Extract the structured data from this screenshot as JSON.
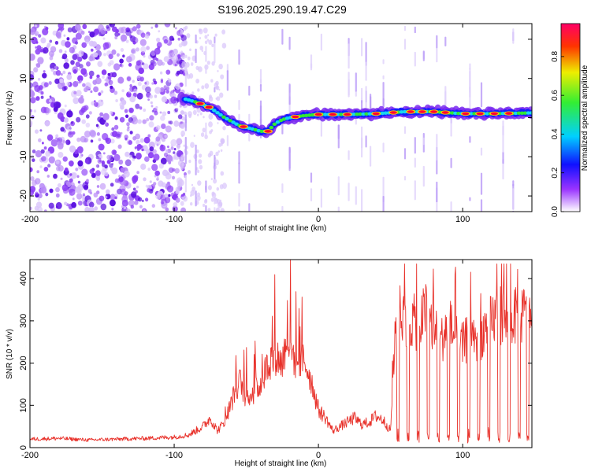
{
  "title": "S196.2025.290.19.47.C29",
  "colors": {
    "series": "#e8312a",
    "purple": "#7a2cf0",
    "blue": "#1020ff",
    "cyan": "#19d7ee",
    "green": "#33e833",
    "red": "#ff0030"
  },
  "chart_data": [
    {
      "type": "heatmap",
      "name": "spectrogram",
      "title": "S196.2025.290.19.47.C29",
      "xlabel": "Height of straight line (km)",
      "ylabel": "Frequency (Hz)",
      "xlim": [
        -200,
        148
      ],
      "ylim": [
        -24,
        24
      ],
      "x_ticks": [
        -200,
        -100,
        0,
        100
      ],
      "y_ticks": [
        -20,
        -10,
        0,
        10,
        20
      ],
      "colorbar": {
        "label": "Normalized spectral amplitude",
        "range": [
          0,
          0.97
        ],
        "ticks": [
          0.0,
          0.2,
          0.4,
          0.6,
          0.8
        ],
        "tick_labels": [
          "0.0",
          "0.2",
          "0.4",
          "0.6",
          "0.8"
        ]
      },
      "ridge": {
        "description": "frequency of strongest component vs height",
        "x": [
          -95,
          -85,
          -75,
          -65,
          -55,
          -45,
          -40,
          -35,
          -30,
          -25,
          -20,
          -10,
          0,
          20,
          40,
          60,
          80,
          100,
          120,
          148
        ],
        "y": [
          5,
          4,
          2.5,
          0,
          -2,
          -3,
          -3.5,
          -3.5,
          -1.5,
          -0.5,
          0,
          0.5,
          0.8,
          0.8,
          1,
          1.5,
          1.5,
          1,
          1,
          1.2
        ]
      },
      "noise_region": {
        "x_from": -200,
        "x_to": -92,
        "description": "scattered low-amplitude noise across all frequencies"
      }
    },
    {
      "type": "line",
      "name": "snr",
      "xlabel": "Height of straight line (km)",
      "ylabel": "SNR (10 * v/v)",
      "xlim": [
        -200,
        148
      ],
      "ylim": [
        0,
        445
      ],
      "x_ticks": [
        -200,
        -100,
        0,
        100
      ],
      "y_ticks": [
        0,
        100,
        200,
        300,
        400
      ],
      "series": [
        {
          "name": "SNR",
          "x": [
            -200,
            -180,
            -160,
            -140,
            -120,
            -100,
            -90,
            -80,
            -75,
            -70,
            -65,
            -60,
            -55,
            -50,
            -45,
            -40,
            -35,
            -30,
            -25,
            -22,
            -20,
            -15,
            -10,
            -5,
            0,
            5,
            10,
            15,
            20,
            25,
            30,
            35,
            40,
            45,
            50,
            52,
            55,
            60,
            65,
            70,
            75,
            80,
            85,
            90,
            95,
            100,
            105,
            110,
            115,
            120,
            125,
            130,
            135,
            140,
            145,
            148
          ],
          "y": [
            20,
            22,
            18,
            20,
            22,
            25,
            30,
            50,
            70,
            40,
            60,
            110,
            160,
            120,
            130,
            150,
            200,
            220,
            200,
            260,
            240,
            200,
            210,
            160,
            90,
            70,
            40,
            50,
            60,
            70,
            55,
            60,
            75,
            65,
            40,
            200,
            330,
            310,
            300,
            290,
            330,
            280,
            250,
            300,
            260,
            240,
            270,
            250,
            280,
            300,
            320,
            300,
            310,
            310,
            320,
            300
          ]
        }
      ]
    }
  ]
}
